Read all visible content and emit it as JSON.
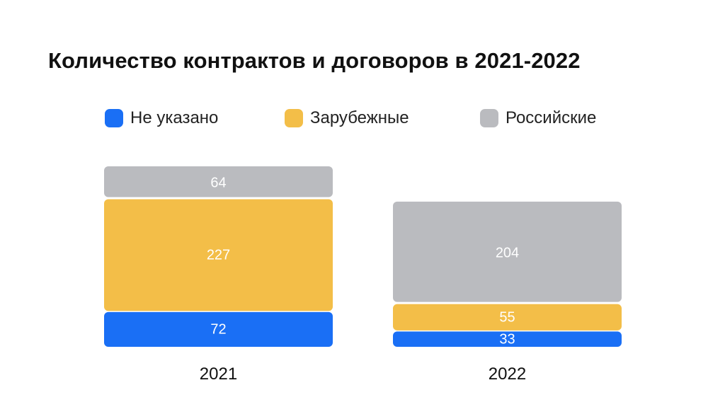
{
  "title": "Количество контрактов и договоров в 2021-2022",
  "colors": {
    "unspecified": "#1a6ff5",
    "foreign": "#f3be48",
    "russian": "#babbbf",
    "label_text": "#ffffff"
  },
  "chart_data": {
    "type": "bar",
    "stacked": true,
    "title": "Количество контрактов и договоров в 2021-2022",
    "categories": [
      "2021",
      "2022"
    ],
    "series": [
      {
        "name": "Не указано",
        "values": [
          72,
          33
        ],
        "color": "#1a6ff5"
      },
      {
        "name": "Зарубежные",
        "values": [
          227,
          55
        ],
        "color": "#f3be48"
      },
      {
        "name": "Российские",
        "values": [
          64,
          204
        ],
        "color": "#babbbf"
      }
    ],
    "legend": "top",
    "grid": false,
    "xlabel": "",
    "ylabel": ""
  }
}
